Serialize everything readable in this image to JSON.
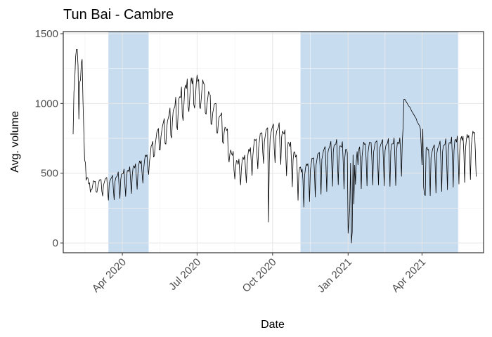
{
  "chart_data": {
    "type": "line",
    "title": "Tun Bai - Cambre",
    "xlabel": "Date",
    "ylabel": "Avg. volume",
    "x_range": [
      "2020-01-20",
      "2021-06-15"
    ],
    "ylim": [
      -70,
      1515
    ],
    "y_ticks": [
      0,
      500,
      1000,
      1500
    ],
    "y_tick_labels": [
      "0",
      "500",
      "1000",
      "1500"
    ],
    "x_ticks": [
      {
        "date": "2020-04-01",
        "label": "Apr 2020"
      },
      {
        "date": "2020-07-01",
        "label": "Jul 2020"
      },
      {
        "date": "2020-10-01",
        "label": "Oct 2020"
      },
      {
        "date": "2021-01-01",
        "label": "Jan 2021"
      },
      {
        "date": "2021-04-01",
        "label": "Apr 2021"
      }
    ],
    "grid": true,
    "shaded_periods": [
      {
        "start": "2020-03-15",
        "end": "2020-05-03"
      },
      {
        "start": "2020-11-04",
        "end": "2021-05-15"
      }
    ],
    "shade_color": "#b3cfea",
    "line_color": "#000000",
    "anchors": [
      [
        "2020-02-01",
        930
      ],
      [
        "2020-02-03",
        1300
      ],
      [
        "2020-02-06",
        1430
      ],
      [
        "2020-02-08",
        1050
      ],
      [
        "2020-02-10",
        1320
      ],
      [
        "2020-02-12",
        1300
      ],
      [
        "2020-02-14",
        800
      ],
      [
        "2020-02-17",
        510
      ],
      [
        "2020-02-20",
        430
      ],
      [
        "2020-03-05",
        450
      ],
      [
        "2020-03-20",
        470
      ],
      [
        "2020-04-10",
        530
      ],
      [
        "2020-04-25",
        590
      ],
      [
        "2020-05-05",
        660
      ],
      [
        "2020-05-10",
        770
      ],
      [
        "2020-05-20",
        850
      ],
      [
        "2020-06-01",
        960
      ],
      [
        "2020-06-10",
        1060
      ],
      [
        "2020-06-20",
        1160
      ],
      [
        "2020-07-01",
        1180
      ],
      [
        "2020-07-10",
        1140
      ],
      [
        "2020-07-18",
        1040
      ],
      [
        "2020-07-28",
        940
      ],
      [
        "2020-08-05",
        840
      ],
      [
        "2020-08-12",
        650
      ],
      [
        "2020-08-20",
        580
      ],
      [
        "2020-08-30",
        630
      ],
      [
        "2020-09-10",
        740
      ],
      [
        "2020-09-20",
        800
      ],
      [
        "2020-10-01",
        830
      ],
      [
        "2020-10-12",
        830
      ],
      [
        "2020-10-20",
        730
      ],
      [
        "2020-10-28",
        650
      ],
      [
        "2020-11-05",
        520
      ],
      [
        "2020-11-20",
        610
      ],
      [
        "2020-12-05",
        680
      ],
      [
        "2020-12-15",
        720
      ],
      [
        "2020-12-25",
        700
      ],
      [
        "2021-01-05",
        640
      ],
      [
        "2021-01-20",
        710
      ],
      [
        "2021-02-05",
        720
      ],
      [
        "2021-02-20",
        720
      ],
      [
        "2021-03-05",
        730
      ],
      [
        "2021-03-15",
        1010
      ],
      [
        "2021-03-25",
        920
      ],
      [
        "2021-04-01",
        840
      ],
      [
        "2021-04-08",
        660
      ],
      [
        "2021-04-20",
        700
      ],
      [
        "2021-05-01",
        720
      ],
      [
        "2021-05-15",
        750
      ],
      [
        "2021-05-25",
        760
      ],
      [
        "2021-06-06",
        800
      ]
    ],
    "weekly_dips": [
      [
        "2020-02-01",
        10
      ],
      [
        "2020-02-20",
        40
      ],
      [
        "2020-03-15",
        160
      ],
      [
        "2020-04-20",
        180
      ],
      [
        "2020-05-10",
        160
      ],
      [
        "2020-06-20",
        210
      ],
      [
        "2020-07-10",
        220
      ],
      [
        "2020-08-12",
        130
      ],
      [
        "2020-09-10",
        240
      ],
      [
        "2020-10-20",
        260
      ],
      [
        "2020-12-05",
        320
      ],
      [
        "2020-12-20",
        280
      ],
      [
        "2021-01-20",
        320
      ],
      [
        "2021-03-01",
        300
      ],
      [
        "2021-04-01",
        280
      ],
      [
        "2021-04-10",
        340
      ],
      [
        "2021-05-15",
        320
      ],
      [
        "2021-06-06",
        340
      ]
    ],
    "special_points": [
      [
        "2020-09-26",
        150
      ],
      [
        "2021-01-01",
        70
      ],
      [
        "2021-01-02",
        150
      ],
      [
        "2021-01-03",
        250
      ],
      [
        "2021-01-05",
        0
      ],
      [
        "2021-01-06",
        80
      ],
      [
        "2021-01-08",
        280
      ],
      [
        "2021-01-10",
        420
      ],
      [
        "2021-01-13",
        560
      ],
      [
        "2021-03-10",
        1030
      ],
      [
        "2021-03-11",
        1030
      ],
      [
        "2021-03-12",
        1020
      ],
      [
        "2021-03-13",
        1010
      ],
      [
        "2021-03-14",
        1000
      ],
      [
        "2021-03-15",
        990
      ],
      [
        "2021-03-16",
        980
      ],
      [
        "2021-03-17",
        975
      ],
      [
        "2021-03-18",
        965
      ],
      [
        "2021-03-19",
        950
      ],
      [
        "2021-03-20",
        940
      ],
      [
        "2021-03-21",
        930
      ],
      [
        "2021-03-22",
        920
      ],
      [
        "2021-03-23",
        910
      ],
      [
        "2021-03-24",
        900
      ],
      [
        "2021-03-25",
        890
      ],
      [
        "2021-03-26",
        870
      ],
      [
        "2021-03-27",
        860
      ],
      [
        "2021-03-28",
        850
      ],
      [
        "2021-03-29",
        840
      ],
      [
        "2021-03-30",
        820
      ],
      [
        "2021-03-31",
        700
      ],
      [
        "2021-04-01",
        560
      ],
      [
        "2021-04-03",
        400
      ],
      [
        "2021-04-04",
        350
      ],
      [
        "2021-04-05",
        340
      ]
    ],
    "series_start": "2020-02-01",
    "series_end": "2021-06-06"
  }
}
